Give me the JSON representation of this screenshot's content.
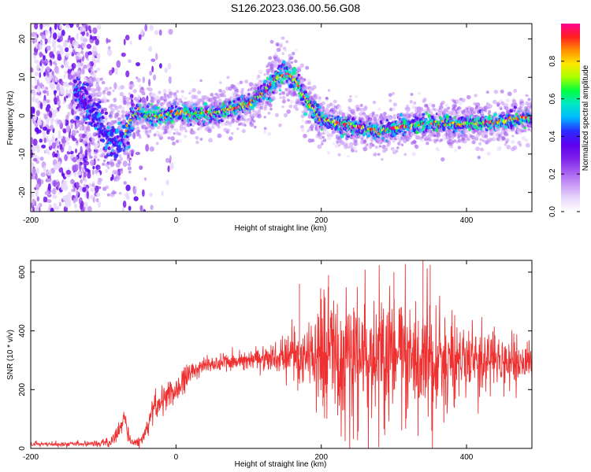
{
  "title": "S126.2023.036.00.56.G08",
  "colors": {
    "snr_line": "#ef3030",
    "colormap": [
      "#ffffff",
      "#e7d8fb",
      "#c89af5",
      "#a35bf0",
      "#7c1ee8",
      "#5b00f0",
      "#2a2cff",
      "#00b8ff",
      "#00e8c8",
      "#00ff40",
      "#a8ff00",
      "#ffe800",
      "#ff9000",
      "#ff2020",
      "#ff0090"
    ]
  },
  "chart_data": [
    {
      "type": "heatmap",
      "title": "",
      "xlabel": "Height of straight line (km)",
      "ylabel": "Frequency (Hz)",
      "xlim": [
        -200,
        490
      ],
      "ylim": [
        -25,
        24
      ],
      "x_ticks": [
        -200,
        0,
        200,
        400
      ],
      "y_ticks": [
        -20,
        -10,
        0,
        10,
        20
      ],
      "colorbar": {
        "label": "Normalized spectral amplitude",
        "range": [
          0,
          1
        ],
        "ticks": [
          0.0,
          0.2,
          0.4,
          0.6,
          0.8
        ]
      },
      "ridge": {
        "x": [
          -135,
          -120,
          -110,
          -100,
          -90,
          -80,
          -70,
          -60,
          -50,
          -40,
          -20,
          0,
          20,
          40,
          60,
          80,
          100,
          120,
          140,
          155,
          165,
          180,
          200,
          220,
          250,
          280,
          310,
          340,
          370,
          400,
          430,
          460,
          490
        ],
        "freq": [
          5,
          2,
          -1,
          -4,
          -6,
          -7,
          -5,
          0,
          1,
          0,
          0,
          0.5,
          0.5,
          0.5,
          1,
          2,
          3,
          6,
          10,
          11,
          9,
          4,
          -1,
          -2,
          -3,
          -4,
          -3,
          -2,
          -2,
          -2,
          -2,
          -1,
          -0.5
        ]
      }
    },
    {
      "type": "line",
      "title": "",
      "xlabel": "Height of straight line (km)",
      "ylabel": "SNR (10 * v/v)",
      "xlim": [
        -200,
        490
      ],
      "ylim": [
        0,
        640
      ],
      "x_ticks": [
        -200,
        0,
        200,
        400
      ],
      "y_ticks": [
        0,
        200,
        400,
        600
      ],
      "envelope": {
        "x": [
          -200,
          -120,
          -90,
          -80,
          -70,
          -65,
          -60,
          -50,
          -40,
          -35,
          -30,
          -20,
          0,
          20,
          40,
          60,
          100,
          140,
          160,
          180,
          200,
          250,
          300,
          340,
          360,
          400,
          450,
          490
        ],
        "mean": [
          15,
          15,
          20,
          60,
          100,
          40,
          20,
          20,
          60,
          110,
          140,
          160,
          200,
          260,
          285,
          290,
          300,
          310,
          315,
          320,
          300,
          300,
          300,
          310,
          300,
          300,
          285,
          280
        ],
        "spread": [
          6,
          8,
          15,
          30,
          40,
          25,
          10,
          15,
          30,
          45,
          50,
          50,
          45,
          40,
          25,
          25,
          30,
          50,
          70,
          90,
          150,
          180,
          200,
          190,
          170,
          120,
          70,
          60
        ],
        "peaks": [
          [
            210,
            590
          ],
          [
            340,
            640
          ],
          [
            350,
            625
          ],
          [
            170,
            560
          ],
          [
            300,
            600
          ]
        ]
      }
    }
  ]
}
